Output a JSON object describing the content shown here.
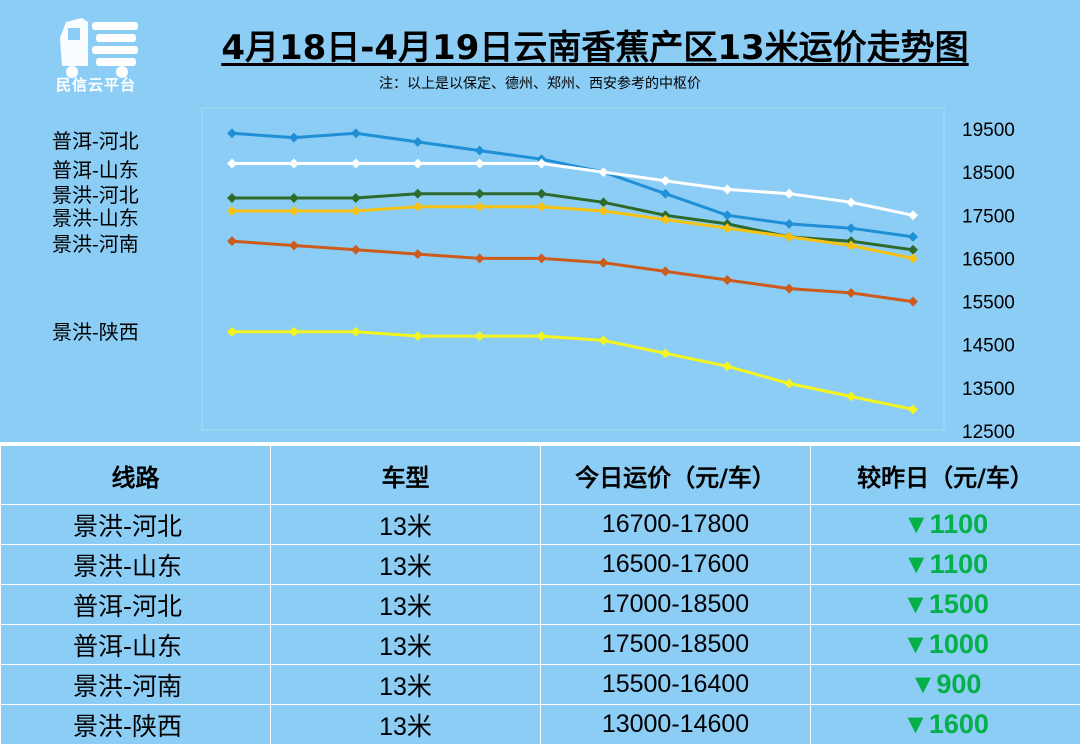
{
  "logo": {
    "icon": "delivery-truck-icon",
    "text": "民信云平台",
    "color": "#ffffff"
  },
  "title": "4月18日-4月19日云南香蕉产区13米运价走势图",
  "note": "注：以上是以保定、德州、郑州、西安参考的中枢价",
  "chart_data": {
    "type": "line",
    "x": [
      1,
      2,
      3,
      4,
      5,
      6,
      7,
      8,
      9,
      10,
      11,
      12
    ],
    "ylim": [
      12500,
      19500
    ],
    "yticks": [
      "19500",
      "18500",
      "17500",
      "16500",
      "15500",
      "14500",
      "13500",
      "12500"
    ],
    "grid": false,
    "legend": "left",
    "series": [
      {
        "name": "普洱-河北",
        "color": "#1f8fd6",
        "values": [
          19400,
          19300,
          19400,
          19200,
          19000,
          18800,
          18500,
          18000,
          17500,
          17300,
          17200,
          17000
        ]
      },
      {
        "name": "普洱-山东",
        "color": "#ffffff",
        "values": [
          18700,
          18700,
          18700,
          18700,
          18700,
          18700,
          18500,
          18300,
          18100,
          18000,
          17800,
          17500
        ]
      },
      {
        "name": "景洪-河北",
        "color": "#2f6a2d",
        "values": [
          17900,
          17900,
          17900,
          18000,
          18000,
          18000,
          17800,
          17500,
          17300,
          17000,
          16900,
          16700
        ]
      },
      {
        "name": "景洪-山东",
        "color": "#f5c213",
        "values": [
          17600,
          17600,
          17600,
          17700,
          17700,
          17700,
          17600,
          17400,
          17200,
          17000,
          16800,
          16500
        ]
      },
      {
        "name": "景洪-河南",
        "color": "#cc5b1c",
        "values": [
          16900,
          16800,
          16700,
          16600,
          16500,
          16500,
          16400,
          16200,
          16000,
          15800,
          15700,
          15500
        ]
      },
      {
        "name": "景洪-陕西",
        "color": "#f4f41e",
        "values": [
          14800,
          14800,
          14800,
          14700,
          14700,
          14700,
          14600,
          14300,
          14000,
          13600,
          13300,
          13000
        ]
      }
    ]
  },
  "table": {
    "headers": [
      "线路",
      "车型",
      "今日运价（元/车）",
      "较昨日（元/车）"
    ],
    "rows": [
      {
        "route": "景洪-河北",
        "truck": "13米",
        "price": "16700-17800",
        "change": "▼1100"
      },
      {
        "route": "景洪-山东",
        "truck": "13米",
        "price": "16500-17600",
        "change": "▼1100"
      },
      {
        "route": "普洱-河北",
        "truck": "13米",
        "price": "17000-18500",
        "change": "▼1500"
      },
      {
        "route": "普洱-山东",
        "truck": "13米",
        "price": "17500-18500",
        "change": "▼1000"
      },
      {
        "route": "景洪-河南",
        "truck": "13米",
        "price": "15500-16400",
        "change": "▼900"
      },
      {
        "route": "景洪-陕西",
        "truck": "13米",
        "price": "13000-14600",
        "change": "▼1600"
      }
    ]
  }
}
